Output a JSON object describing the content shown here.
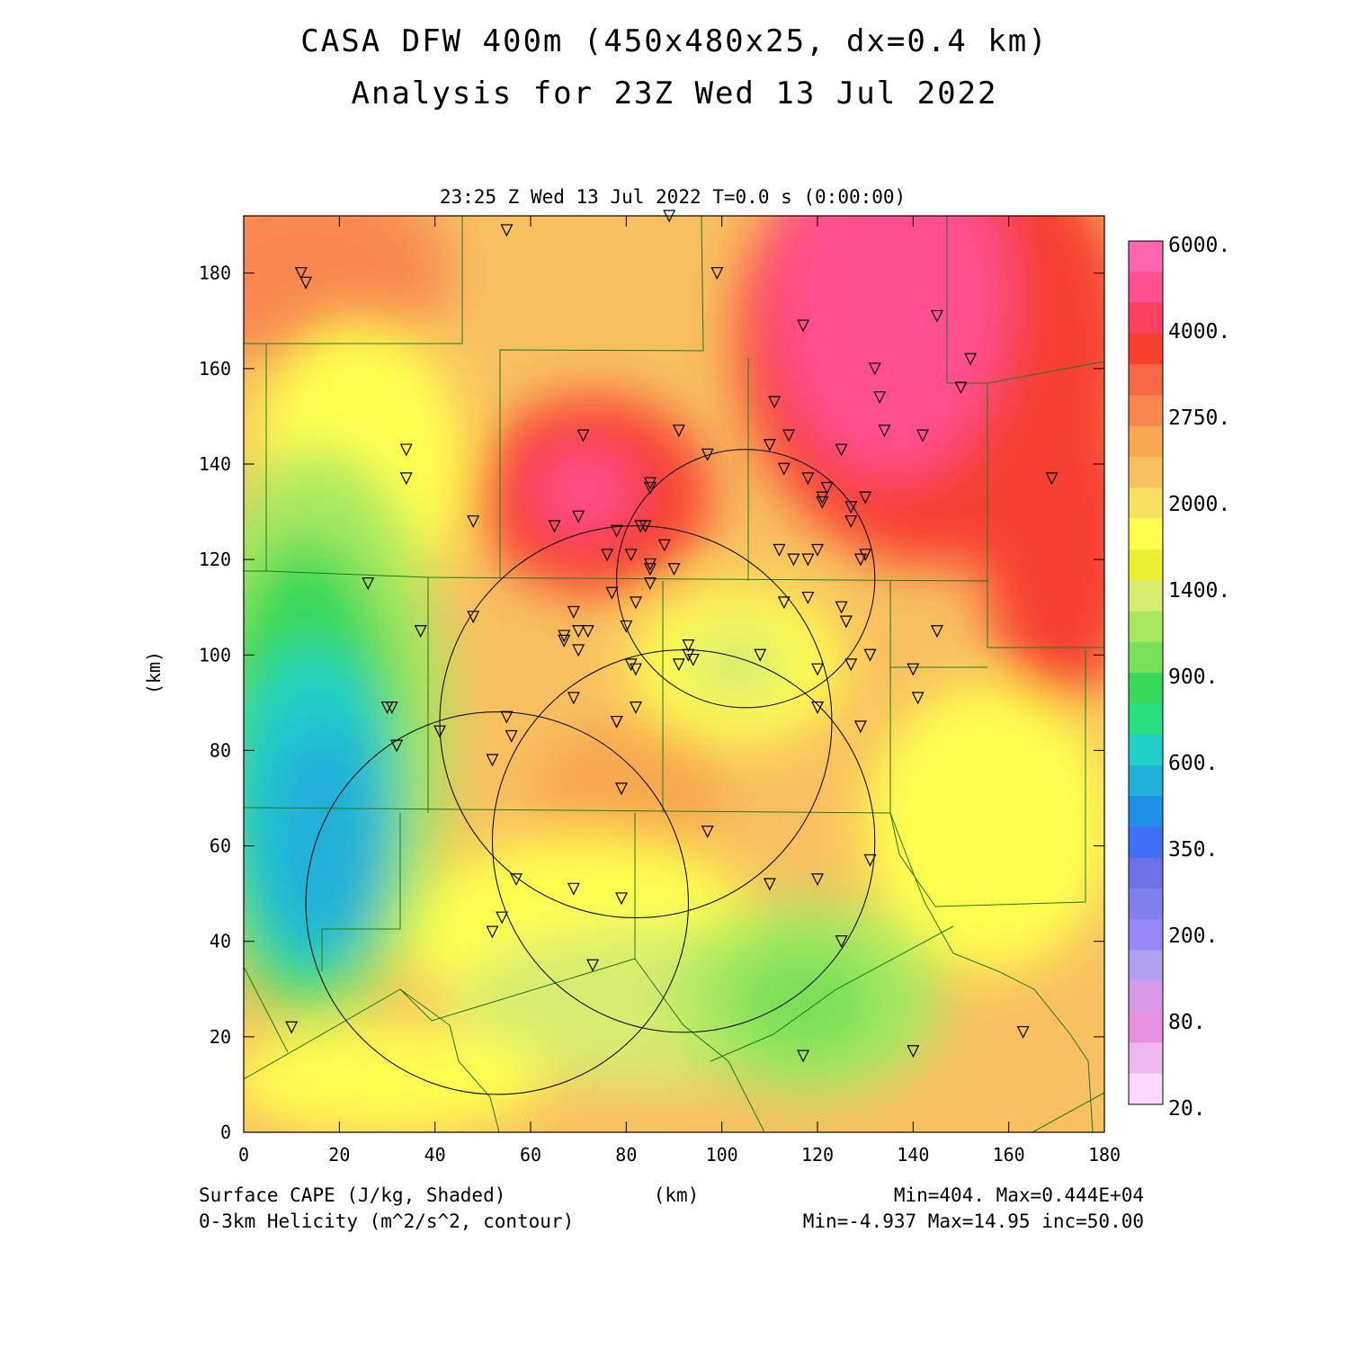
{
  "title": "CASA DFW 400m (450x480x25, dx=0.4 km)",
  "subtitle": "Analysis for 23Z Wed 13 Jul 2022",
  "valid_time": "23:25 Z Wed 13 Jul 2022   T=0.0 s (0:00:00)",
  "x_axis": {
    "label": "(km)",
    "ticks": [
      0,
      20,
      40,
      60,
      80,
      100,
      120,
      140,
      160,
      180
    ],
    "range": [
      0,
      180
    ]
  },
  "y_axis": {
    "label": "(km)",
    "ticks": [
      0,
      20,
      40,
      60,
      80,
      100,
      120,
      140,
      160,
      180
    ],
    "range": [
      0,
      192
    ]
  },
  "colorbar": {
    "labels": [
      "6000.",
      "4000.",
      "2750.",
      "2000.",
      "1400.",
      "900.",
      "600.",
      "350.",
      "200.",
      "80.",
      "20."
    ],
    "colors": [
      "#ff66b0",
      "#ff5090",
      "#ff4060",
      "#f84030",
      "#f86848",
      "#f88850",
      "#f8a850",
      "#f8c060",
      "#f8e060",
      "#ffff50",
      "#e8f030",
      "#d8ec70",
      "#a8e860",
      "#78e058",
      "#38d858",
      "#28e080",
      "#20d0c8",
      "#20b0d8",
      "#2090e8",
      "#4070f8",
      "#7070e8",
      "#8080f0",
      "#9888f8",
      "#b0a0f0",
      "#d898e8",
      "#e890e0",
      "#f0b8f0",
      "#ffd8ff"
    ]
  },
  "footer": {
    "field1": "Surface CAPE (J/kg, Shaded)",
    "field2": "0-3km Helicity (m^2/s^2, contour)",
    "unit": "(km)",
    "stats1": "Min=404.  Max=0.444E+04",
    "stats2": "Min=-4.937 Max=14.95 inc=50.00"
  },
  "radar_circles_km": [
    {
      "x": 105,
      "y": 116,
      "r": 27
    },
    {
      "x": 82,
      "y": 86,
      "r": 41
    },
    {
      "x": 92,
      "y": 61,
      "r": 40
    },
    {
      "x": 53,
      "y": 48,
      "r": 40
    }
  ],
  "stations_km": [
    [
      12,
      180
    ],
    [
      13,
      178
    ],
    [
      55,
      189
    ],
    [
      89,
      192
    ],
    [
      99,
      180
    ],
    [
      117,
      169
    ],
    [
      145,
      171
    ],
    [
      152,
      162
    ],
    [
      132,
      160
    ],
    [
      150,
      156
    ],
    [
      133,
      154
    ],
    [
      111,
      153
    ],
    [
      34,
      143
    ],
    [
      34,
      137
    ],
    [
      71,
      146
    ],
    [
      91,
      147
    ],
    [
      97,
      142
    ],
    [
      110,
      144
    ],
    [
      114,
      146
    ],
    [
      125,
      143
    ],
    [
      134,
      147
    ],
    [
      142,
      146
    ],
    [
      169,
      137
    ],
    [
      85,
      136
    ],
    [
      85,
      135
    ],
    [
      113,
      139
    ],
    [
      118,
      137
    ],
    [
      122,
      135
    ],
    [
      121,
      133
    ],
    [
      121,
      132
    ],
    [
      127,
      131
    ],
    [
      130,
      133
    ],
    [
      127,
      128
    ],
    [
      48,
      128
    ],
    [
      70,
      129
    ],
    [
      65,
      127
    ],
    [
      78,
      126
    ],
    [
      83,
      127
    ],
    [
      84,
      127
    ],
    [
      88,
      123
    ],
    [
      76,
      121
    ],
    [
      81,
      121
    ],
    [
      85,
      119
    ],
    [
      85,
      118
    ],
    [
      90,
      118
    ],
    [
      112,
      122
    ],
    [
      115,
      120
    ],
    [
      118,
      120
    ],
    [
      120,
      122
    ],
    [
      129,
      120
    ],
    [
      130,
      121
    ],
    [
      26,
      115
    ],
    [
      85,
      115
    ],
    [
      77,
      113
    ],
    [
      82,
      111
    ],
    [
      113,
      111
    ],
    [
      118,
      112
    ],
    [
      125,
      110
    ],
    [
      126,
      107
    ],
    [
      37,
      105
    ],
    [
      48,
      108
    ],
    [
      69,
      109
    ],
    [
      70,
      105
    ],
    [
      72,
      105
    ],
    [
      67,
      103
    ],
    [
      67,
      104
    ],
    [
      70,
      101
    ],
    [
      80,
      106
    ],
    [
      93,
      102
    ],
    [
      93,
      100
    ],
    [
      94,
      99
    ],
    [
      91,
      98
    ],
    [
      108,
      100
    ],
    [
      81,
      98
    ],
    [
      82,
      97
    ],
    [
      120,
      97
    ],
    [
      127,
      98
    ],
    [
      131,
      100
    ],
    [
      140,
      97
    ],
    [
      145,
      105
    ],
    [
      141,
      91
    ],
    [
      30,
      89
    ],
    [
      31,
      89
    ],
    [
      69,
      91
    ],
    [
      82,
      89
    ],
    [
      120,
      89
    ],
    [
      32,
      81
    ],
    [
      41,
      84
    ],
    [
      55,
      87
    ],
    [
      56,
      83
    ],
    [
      78,
      86
    ],
    [
      78,
      86
    ],
    [
      52,
      78
    ],
    [
      79,
      72
    ],
    [
      97,
      63
    ],
    [
      129,
      85
    ],
    [
      131,
      57
    ],
    [
      57,
      53
    ],
    [
      69,
      51
    ],
    [
      79,
      49
    ],
    [
      120,
      53
    ],
    [
      110,
      52
    ],
    [
      52,
      42
    ],
    [
      54,
      45
    ],
    [
      73,
      35
    ],
    [
      125,
      40
    ],
    [
      10,
      22
    ],
    [
      117,
      16
    ],
    [
      140,
      17
    ],
    [
      163,
      21
    ]
  ]
}
